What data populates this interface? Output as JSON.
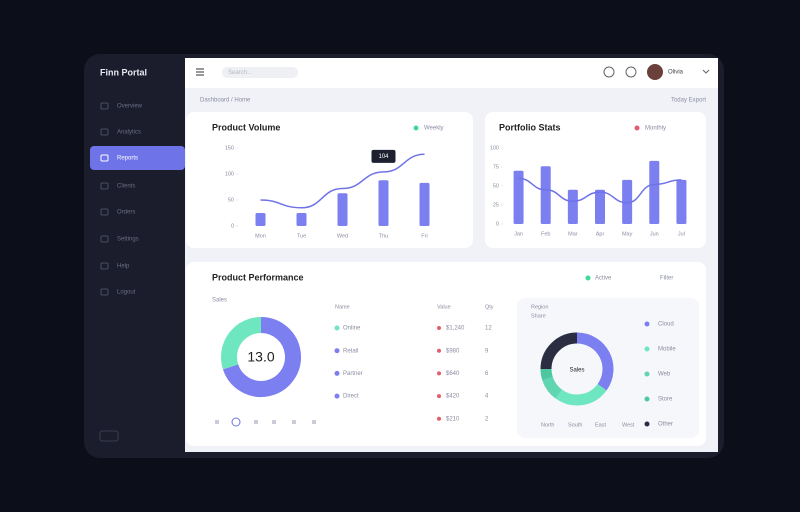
{
  "sidebar": {
    "brand": "Finn Portal",
    "items": [
      "Overview",
      "Analytics",
      "Reports",
      "Clients",
      "Orders",
      "Settings",
      "Help",
      "Logout"
    ],
    "active": 2
  },
  "header": {
    "search": "Search...",
    "user": "Olivia"
  },
  "breadcrumb": "Dashboard / Home",
  "toolbar": "Today  Export",
  "performance": {
    "title": "Product Performance",
    "subtitle": "Sales",
    "filters": [
      "Active",
      "Filter"
    ],
    "table": {
      "columns": [
        "Name",
        "Value",
        "Qty"
      ],
      "rows": [
        [
          "Online",
          "$1,240",
          "12"
        ],
        [
          "Retail",
          "$980",
          "9"
        ],
        [
          "Partner",
          "$640",
          "6"
        ],
        [
          "Direct",
          "$420",
          "4"
        ],
        [
          "Other",
          "$210",
          "2"
        ]
      ],
      "dot_colors": [
        "#6ee7c0",
        "#7b7ff0",
        "#7b7ff0",
        "#7b7ff0"
      ]
    },
    "region": {
      "title": "Region",
      "subtitle": "Share"
    },
    "footer": [
      "North",
      "South",
      "East",
      "West"
    ]
  },
  "chart_data": [
    {
      "type": "bar_line",
      "title": "Product Volume",
      "legend": "Weekly",
      "legend_color": "#3fd99a",
      "categories": [
        "Mon",
        "Tue",
        "Wed",
        "Thu",
        "Fri"
      ],
      "series": [
        {
          "name": "Volume",
          "color": "#7b7ff0",
          "kind": "bar",
          "values": [
            25,
            25,
            63,
            88,
            83
          ]
        },
        {
          "name": "Trend",
          "color": "#6f73e8",
          "kind": "line",
          "values": [
            50,
            35,
            72,
            104,
            138
          ]
        }
      ],
      "tooltip_index": 3,
      "ylim": [
        0,
        150
      ],
      "yticks": [
        0,
        50,
        100,
        150
      ]
    },
    {
      "type": "bar_line",
      "title": "Portfolio Stats",
      "legend": "Monthly",
      "legend_color": "#e35d6a",
      "categories": [
        "Jan",
        "Feb",
        "Mar",
        "Apr",
        "May",
        "Jun",
        "Jul"
      ],
      "series": [
        {
          "name": "Return",
          "color": "#7b7ff0",
          "kind": "bar",
          "values": [
            70,
            76,
            45,
            45,
            58,
            83,
            58
          ]
        },
        {
          "name": "Risk",
          "color": "#6f73e8",
          "kind": "line",
          "values": [
            60,
            45,
            30,
            42,
            28,
            52,
            58
          ]
        }
      ],
      "ylim": [
        0,
        100
      ],
      "yticks": [
        0,
        25,
        50,
        75,
        100
      ]
    },
    {
      "type": "donut",
      "center_label": "13.0",
      "categories": [
        "Online",
        "Retail"
      ],
      "values": [
        70,
        30
      ],
      "colors": [
        "#7b7ff0",
        "#6ee7c0"
      ]
    },
    {
      "type": "donut",
      "center_label": "Sales",
      "categories": [
        "Cloud",
        "Mobile",
        "Web",
        "Store",
        "Other"
      ],
      "values": [
        35,
        25,
        10,
        5,
        25
      ],
      "colors": [
        "#7b7ff0",
        "#6ee7c0",
        "#5fd6b0",
        "#4cc7a0",
        "#2b2d42"
      ]
    }
  ]
}
